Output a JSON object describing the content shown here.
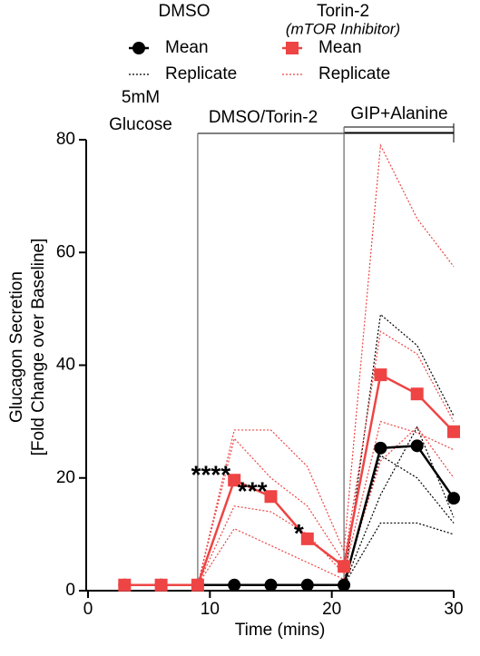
{
  "chart_data": {
    "type": "line",
    "y_label": [
      "Glucagon Secretion",
      "[Fold Change over Baseline]"
    ],
    "x_label": "Time (mins)",
    "x": [
      3,
      6,
      9,
      12,
      15,
      18,
      21,
      24,
      27,
      30
    ],
    "xlim": [
      0,
      30
    ],
    "xticks": [
      0,
      10,
      20,
      30
    ],
    "ylim": [
      0,
      80
    ],
    "yticks": [
      0,
      20,
      40,
      60,
      80
    ],
    "legend_groups": [
      {
        "title": "DMSO"
      },
      {
        "title": "Torin-2",
        "subtitle": "(mTOR Inhibitor)"
      }
    ],
    "series": [
      {
        "name": "Mean",
        "group": 0,
        "color": "#000000",
        "marker": "circle",
        "values": [
          1,
          1,
          1,
          1,
          1,
          1,
          1,
          25.3,
          25.7,
          16.4
        ]
      },
      {
        "name": "Mean",
        "group": 1,
        "color": "#ee4444",
        "marker": "square",
        "values": [
          1,
          1,
          1,
          19.6,
          16.7,
          9.2,
          4.3,
          38.3,
          34.9,
          28.2
        ]
      },
      {
        "name": "Replicate",
        "group": 0,
        "color": "#000000",
        "dotted": true,
        "values": [
          1,
          1,
          1,
          1,
          1,
          1,
          1,
          49,
          43.5,
          31
        ]
      },
      {
        "name": "Replicate",
        "group": 0,
        "color": "#000000",
        "dotted": true,
        "values": [
          1,
          1,
          1,
          1,
          1,
          1,
          1,
          24,
          20,
          12
        ]
      },
      {
        "name": "Replicate",
        "group": 0,
        "color": "#000000",
        "dotted": true,
        "values": [
          1,
          1,
          1,
          1,
          1,
          1,
          1,
          12,
          12,
          10
        ]
      },
      {
        "name": "Replicate",
        "group": 0,
        "color": "#000000",
        "dotted": true,
        "values": [
          1,
          1,
          1,
          1,
          1,
          1,
          1,
          17,
          29,
          13
        ]
      },
      {
        "name": "Replicate",
        "group": 1,
        "color": "#ee4444",
        "dotted": true,
        "values": [
          1,
          1,
          1,
          28.5,
          28.5,
          22,
          7,
          79,
          66,
          57.5
        ]
      },
      {
        "name": "Replicate",
        "group": 1,
        "color": "#ee4444",
        "dotted": true,
        "values": [
          1,
          1,
          1,
          27,
          20,
          15,
          5,
          46,
          42,
          30
        ]
      },
      {
        "name": "Replicate",
        "group": 1,
        "color": "#ee4444",
        "dotted": true,
        "values": [
          1,
          1,
          1,
          15,
          14,
          10,
          3,
          30,
          28,
          25
        ]
      },
      {
        "name": "Replicate",
        "group": 1,
        "color": "#ee4444",
        "dotted": true,
        "values": [
          1,
          1,
          1,
          11,
          8,
          5,
          2,
          23,
          29,
          20
        ]
      }
    ],
    "phases": [
      {
        "label": [
          "5mM",
          "Glucose"
        ]
      },
      {
        "label": "DMSO/Torin-2",
        "start": 9,
        "end": 30
      },
      {
        "label": "GIP+Alanine",
        "start": 21,
        "end": 30
      }
    ],
    "significance": [
      {
        "text": "****",
        "x": 12
      },
      {
        "text": "***",
        "x": 15
      },
      {
        "text": "*",
        "x": 18
      }
    ]
  }
}
